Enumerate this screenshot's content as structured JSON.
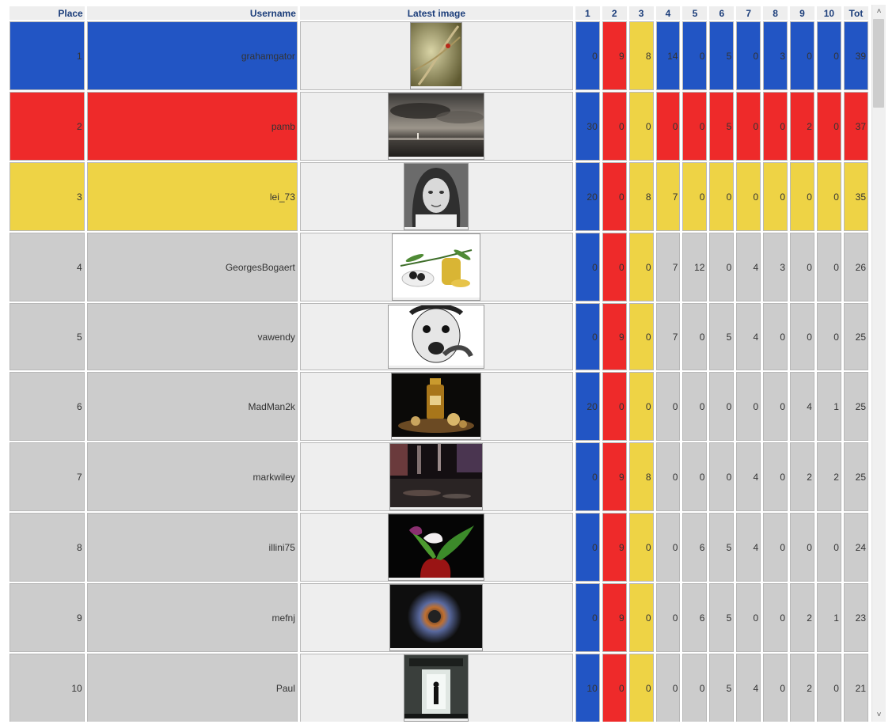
{
  "columns": {
    "place": "Place",
    "username": "Username",
    "latest_image": "Latest image",
    "rounds": [
      "1",
      "2",
      "3",
      "4",
      "5",
      "6",
      "7",
      "8",
      "9",
      "10"
    ],
    "total": "Tot"
  },
  "colors": {
    "blue": "#2255c4",
    "red": "#ee2a2a",
    "yellow": "#eed345",
    "gray": "#cccccc",
    "image_cell": "#eeeeee",
    "header_text": "#1b3d7a"
  },
  "rows": [
    {
      "place": "1",
      "username": "grahamgator",
      "row_color": "blue",
      "image_icon": "wheat-ladybug-photo",
      "scores": [
        "0",
        "9",
        "8",
        "14",
        "0",
        "5",
        "0",
        "3",
        "0",
        "0"
      ],
      "total": "39"
    },
    {
      "place": "2",
      "username": "pamb",
      "row_color": "red",
      "image_icon": "stormy-sky-photo",
      "scores": [
        "30",
        "0",
        "0",
        "0",
        "0",
        "5",
        "0",
        "0",
        "2",
        "0"
      ],
      "total": "37"
    },
    {
      "place": "3",
      "username": "lei_73",
      "row_color": "yellow",
      "image_icon": "woman-portrait-photo",
      "scores": [
        "20",
        "0",
        "8",
        "7",
        "0",
        "0",
        "0",
        "0",
        "0",
        "0"
      ],
      "total": "35"
    },
    {
      "place": "4",
      "username": "GeorgesBogaert",
      "row_color": "gray",
      "image_icon": "olives-oil-photo",
      "scores": [
        "0",
        "0",
        "0",
        "7",
        "12",
        "0",
        "4",
        "3",
        "0",
        "0"
      ],
      "total": "26"
    },
    {
      "place": "5",
      "username": "vawendy",
      "row_color": "gray",
      "image_icon": "scared-face-photo",
      "scores": [
        "0",
        "9",
        "0",
        "7",
        "0",
        "5",
        "4",
        "0",
        "0",
        "0"
      ],
      "total": "25"
    },
    {
      "place": "6",
      "username": "MadMan2k",
      "row_color": "gray",
      "image_icon": "oil-bottle-photo",
      "scores": [
        "20",
        "0",
        "0",
        "0",
        "0",
        "0",
        "0",
        "0",
        "4",
        "1"
      ],
      "total": "25"
    },
    {
      "place": "7",
      "username": "markwiley",
      "row_color": "gray",
      "image_icon": "night-street-photo",
      "scores": [
        "0",
        "9",
        "8",
        "0",
        "0",
        "0",
        "4",
        "0",
        "2",
        "2"
      ],
      "total": "25"
    },
    {
      "place": "8",
      "username": "illini75",
      "row_color": "gray",
      "image_icon": "calla-lily-photo",
      "scores": [
        "0",
        "9",
        "0",
        "0",
        "6",
        "5",
        "4",
        "0",
        "0",
        "0"
      ],
      "total": "24"
    },
    {
      "place": "9",
      "username": "mefnj",
      "row_color": "gray",
      "image_icon": "abstract-burst-photo",
      "scores": [
        "0",
        "9",
        "0",
        "0",
        "6",
        "5",
        "0",
        "0",
        "2",
        "1"
      ],
      "total": "23"
    },
    {
      "place": "10",
      "username": "Paul",
      "row_color": "gray",
      "image_icon": "doorway-silhouette-photo",
      "scores": [
        "10",
        "0",
        "0",
        "0",
        "0",
        "5",
        "4",
        "0",
        "2",
        "0"
      ],
      "total": "21"
    }
  ]
}
